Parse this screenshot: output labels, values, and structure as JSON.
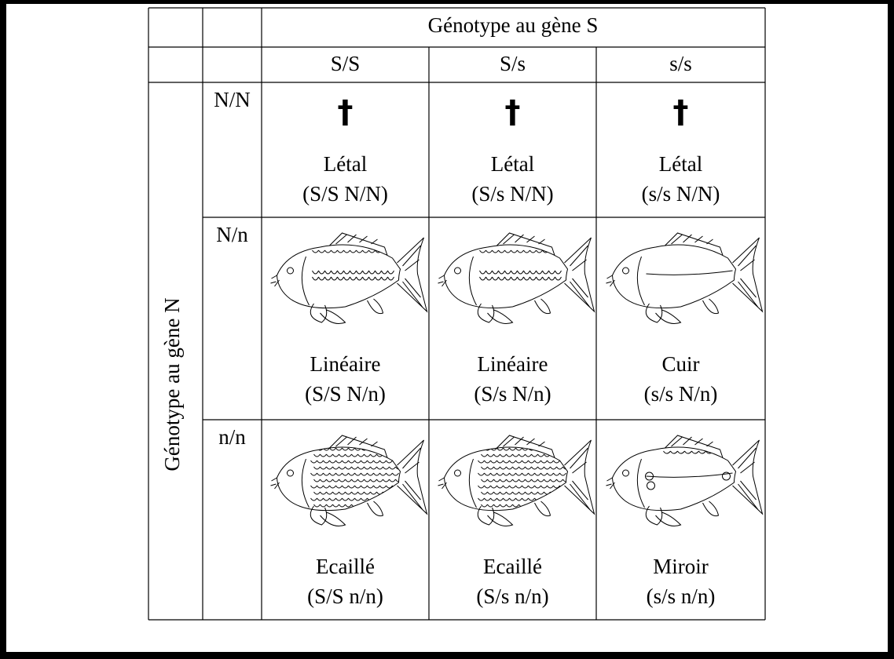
{
  "table": {
    "title": "Génotype au gène S",
    "row_title": "Génotype au gène N",
    "columns": [
      "S/S",
      "S/s",
      "s/s"
    ],
    "rows": [
      {
        "header": "N/N",
        "cells": [
          {
            "symbol": "†",
            "label": "Létal",
            "genotype": "(S/S N/N)"
          },
          {
            "symbol": "†",
            "label": "Létal",
            "genotype": "(S/s N/N)"
          },
          {
            "symbol": "†",
            "label": "Létal",
            "genotype": "(s/s N/N)"
          }
        ]
      },
      {
        "header": "N/n",
        "cells": [
          {
            "label": "Linéaire",
            "genotype": "(S/S N/n)"
          },
          {
            "label": "Linéaire",
            "genotype": "(S/s N/n)"
          },
          {
            "label": "Cuir",
            "genotype": "(s/s N/n)"
          }
        ]
      },
      {
        "header": "n/n",
        "cells": [
          {
            "label": "Ecaillé",
            "genotype": "(S/S n/n)"
          },
          {
            "label": "Ecaillé",
            "genotype": "(S/s n/n)"
          },
          {
            "label": "Miroir",
            "genotype": "(s/s n/n)"
          }
        ]
      }
    ]
  }
}
